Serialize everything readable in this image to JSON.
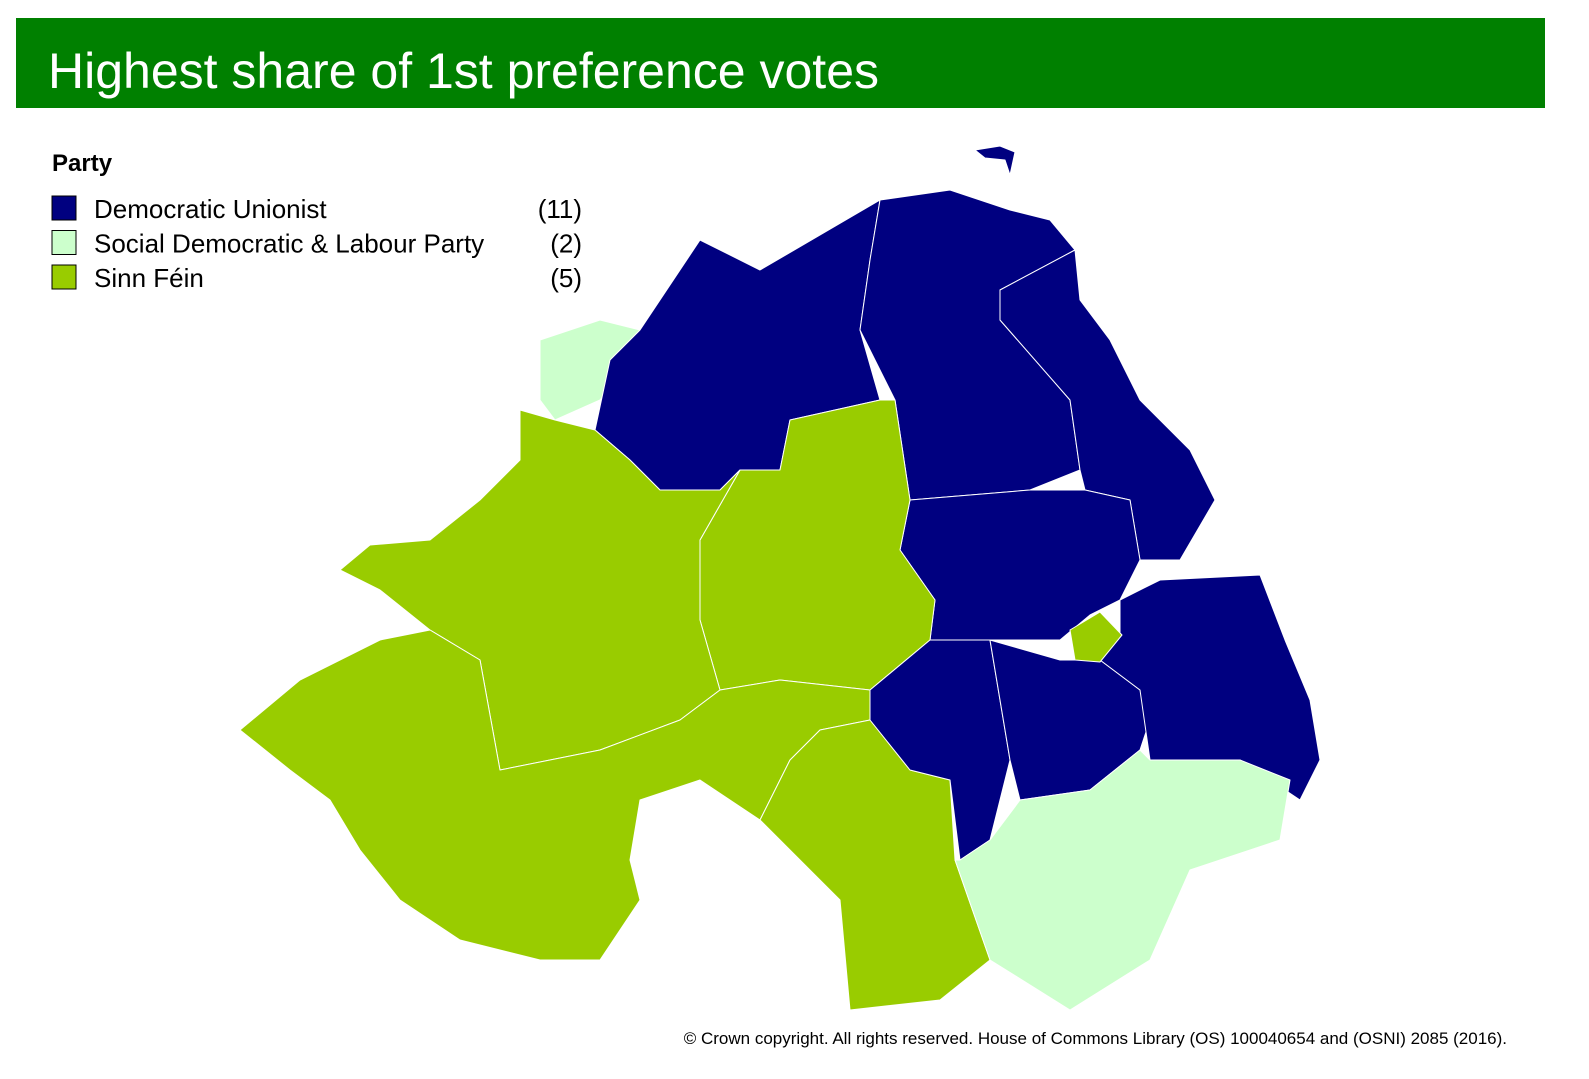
{
  "title": "Highest share of 1st preference votes",
  "legend": {
    "title": "Party",
    "items": [
      {
        "name": "Democratic Unionist",
        "count": "(11)",
        "color": "#000080"
      },
      {
        "name": "Social Democratic & Labour Party",
        "count": "(2)",
        "color": "#ccffcc"
      },
      {
        "name": "Sinn Féin",
        "count": "(5)",
        "color": "#99cc00"
      }
    ]
  },
  "copyright": "© Crown copyright. All rights reserved. House of Commons Library (OS) 100040654 and (OSNI) 2085 (2016)."
}
